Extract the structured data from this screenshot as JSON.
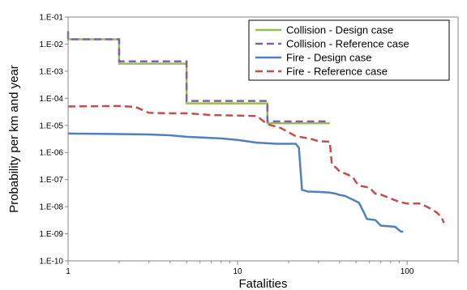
{
  "chart_data": {
    "type": "line",
    "title": "",
    "xlabel": "Fatalities",
    "ylabel": "Probability per km and year",
    "x_scale": "log",
    "y_scale": "log",
    "xlim": [
      1,
      200
    ],
    "ylim": [
      1e-10,
      0.1
    ],
    "x_tick_values": [
      1,
      10,
      100
    ],
    "x_tick_labels": [
      "1",
      "10",
      "100"
    ],
    "y_tick_values": [
      1e-10,
      1e-09,
      1e-08,
      1e-07,
      1e-06,
      1e-05,
      0.0001,
      0.001,
      0.01,
      0.1
    ],
    "y_tick_labels": [
      "1.E-10",
      "1.E-09",
      "1.E-08",
      "1.E-07",
      "1.E-06",
      "1.E-05",
      "1.E-04",
      "1.E-03",
      "1.E-02",
      "1.E-01"
    ],
    "grid": false,
    "legend_position": "top-right",
    "series": [
      {
        "name": "Collision - Design case",
        "color": "#9bbb59",
        "dash": "solid",
        "points": [
          [
            1,
            0.018
          ],
          [
            1,
            0.015
          ],
          [
            2,
            0.015
          ],
          [
            2,
            0.0019
          ],
          [
            5,
            0.0019
          ],
          [
            5,
            6.5e-05
          ],
          [
            15,
            6.5e-05
          ],
          [
            15,
            1.2e-05
          ],
          [
            35,
            1.2e-05
          ]
        ]
      },
      {
        "name": "Collision - Reference case",
        "color": "#8064a2",
        "dash": "dashed",
        "points": [
          [
            1,
            0.03
          ],
          [
            1,
            0.015
          ],
          [
            2,
            0.015
          ],
          [
            2,
            0.0023
          ],
          [
            5,
            0.0023
          ],
          [
            5,
            8e-05
          ],
          [
            15,
            8e-05
          ],
          [
            15,
            1.4e-05
          ],
          [
            35,
            1.4e-05
          ]
        ]
      },
      {
        "name": "Fire - Design case",
        "color": "#4f81bd",
        "dash": "solid",
        "points": [
          [
            1,
            5e-06
          ],
          [
            2,
            4.8e-06
          ],
          [
            3,
            4.6e-06
          ],
          [
            4,
            4.3e-06
          ],
          [
            5,
            3.8e-06
          ],
          [
            6,
            3.6e-06
          ],
          [
            8,
            3.3e-06
          ],
          [
            10,
            2.9e-06
          ],
          [
            13,
            2.3e-06
          ],
          [
            17,
            2.1e-06
          ],
          [
            22,
            2.1e-06
          ],
          [
            23,
            1.5e-06
          ],
          [
            24,
            4.2e-08
          ],
          [
            26,
            3.6e-08
          ],
          [
            30,
            3.5e-08
          ],
          [
            35,
            3.3e-08
          ],
          [
            38,
            3e-08
          ],
          [
            40,
            2.7e-08
          ],
          [
            43,
            2.5e-08
          ],
          [
            48,
            1.8e-08
          ],
          [
            52,
            1.4e-08
          ],
          [
            55,
            7e-09
          ],
          [
            58,
            3.5e-09
          ],
          [
            65,
            3.2e-09
          ],
          [
            70,
            2e-09
          ],
          [
            85,
            1.8e-09
          ],
          [
            92,
            1.2e-09
          ],
          [
            95,
            1.2e-09
          ]
        ]
      },
      {
        "name": "Fire - Reference case",
        "color": "#c0504d",
        "dash": "dashed",
        "points": [
          [
            1,
            5e-05
          ],
          [
            2,
            5.2e-05
          ],
          [
            2.5,
            4.8e-05
          ],
          [
            3,
            2.9e-05
          ],
          [
            4,
            2.8e-05
          ],
          [
            5,
            2.8e-05
          ],
          [
            7,
            2.4e-05
          ],
          [
            10,
            2.3e-05
          ],
          [
            13,
            2.2e-05
          ],
          [
            15,
            1.1e-05
          ],
          [
            18,
            8e-06
          ],
          [
            22,
            4e-06
          ],
          [
            27,
            3.2e-06
          ],
          [
            30,
            2.6e-06
          ],
          [
            35,
            2.5e-06
          ],
          [
            36,
            3.5e-07
          ],
          [
            38,
            2.8e-07
          ],
          [
            40,
            2e-07
          ],
          [
            45,
            1.5e-07
          ],
          [
            48,
            1.2e-07
          ],
          [
            50,
            8e-08
          ],
          [
            52,
            6e-08
          ],
          [
            60,
            5e-08
          ],
          [
            65,
            3e-08
          ],
          [
            70,
            2.8e-08
          ],
          [
            80,
            2e-08
          ],
          [
            90,
            1.5e-08
          ],
          [
            100,
            1.3e-08
          ],
          [
            120,
            1.3e-08
          ],
          [
            140,
            8e-09
          ],
          [
            150,
            6e-09
          ],
          [
            160,
            4e-09
          ],
          [
            165,
            2.5e-09
          ]
        ]
      }
    ]
  }
}
